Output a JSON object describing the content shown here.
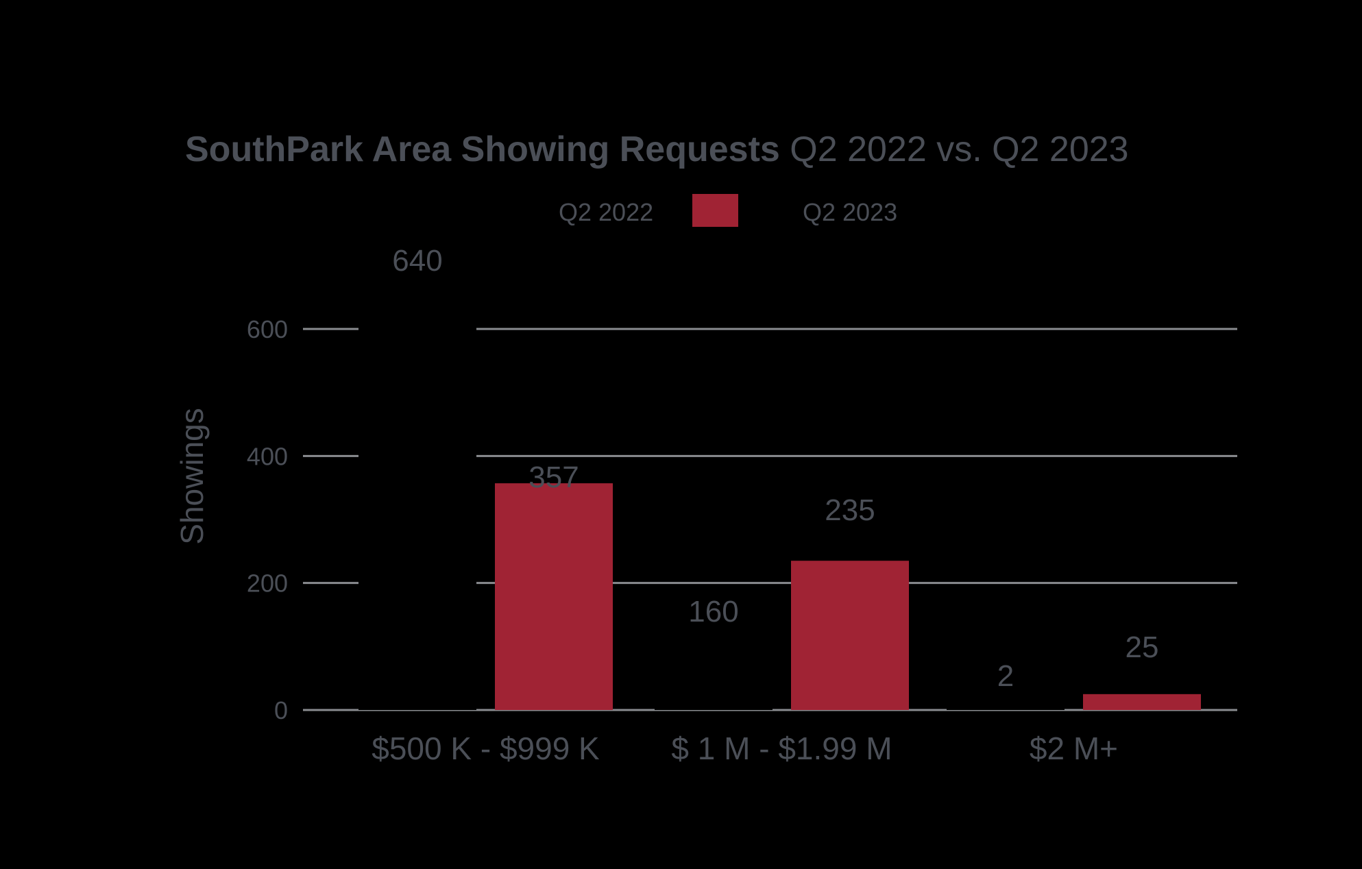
{
  "chart_data": {
    "type": "bar",
    "title_bold": "SouthPark Area Showing Requests",
    "title_regular": "Q2 2022 vs. Q2 2023",
    "xlabel": "",
    "ylabel": "Showings",
    "ylim": [
      0,
      600
    ],
    "y_ticks": [
      "0",
      "200",
      "400",
      "600"
    ],
    "grid": true,
    "legend_position": "top",
    "categories": [
      "$500 K - $999 K",
      "$ 1 M - $1.99 M",
      "$2 M+"
    ],
    "series": [
      {
        "name": "Q2 2022",
        "values": [
          640,
          160,
          2
        ],
        "color": "#000000",
        "labels": [
          "640",
          "160",
          "2"
        ]
      },
      {
        "name": "Q2 2023",
        "values": [
          357,
          235,
          25
        ],
        "color": "#a02334",
        "labels": [
          "357",
          "235",
          "25"
        ]
      }
    ]
  }
}
